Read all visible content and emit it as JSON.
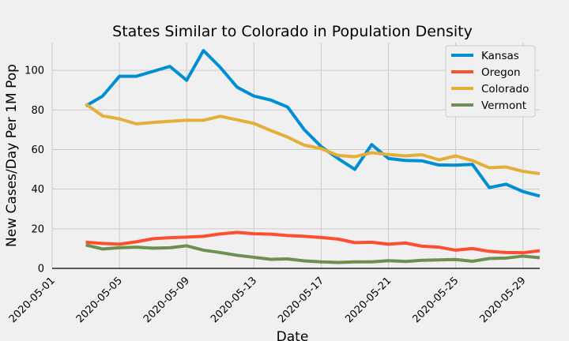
{
  "chart_data": {
    "type": "line",
    "title": "States Similar to Colorado in Population Density",
    "xlabel": "Date",
    "ylabel": "New Cases/Day Per 1M Pop",
    "x_tick_labels": [
      "2020-05-01",
      "2020-05-05",
      "2020-05-09",
      "2020-05-13",
      "2020-05-17",
      "2020-05-21",
      "2020-05-25",
      "2020-05-29"
    ],
    "y_tick_labels": [
      "0",
      "20",
      "40",
      "60",
      "80",
      "100"
    ],
    "xlim": [
      "2020-05-01",
      "2020-05-30"
    ],
    "ylim": [
      0,
      114
    ],
    "grid": true,
    "legend_position": "top-right",
    "x": [
      "2020-05-03",
      "2020-05-04",
      "2020-05-05",
      "2020-05-06",
      "2020-05-07",
      "2020-05-08",
      "2020-05-09",
      "2020-05-10",
      "2020-05-11",
      "2020-05-12",
      "2020-05-13",
      "2020-05-14",
      "2020-05-15",
      "2020-05-16",
      "2020-05-17",
      "2020-05-18",
      "2020-05-19",
      "2020-05-20",
      "2020-05-21",
      "2020-05-22",
      "2020-05-23",
      "2020-05-24",
      "2020-05-25",
      "2020-05-26",
      "2020-05-27",
      "2020-05-28",
      "2020-05-29",
      "2020-05-30"
    ],
    "series": [
      {
        "name": "Kansas",
        "color": "#008fd5",
        "values": [
          82,
          87,
          97,
          97,
          99.5,
          102,
          95,
          110,
          101.5,
          91.5,
          87,
          85,
          81.5,
          70,
          61.5,
          55.5,
          50,
          62.5,
          55.5,
          54.5,
          54.3,
          52.2,
          52.1,
          52.5,
          40.8,
          42.5,
          38.8,
          36.5
        ]
      },
      {
        "name": "Oregon",
        "color": "#fc4f30",
        "values": [
          13.2,
          12.6,
          12.2,
          13.4,
          15,
          15.5,
          15.8,
          16.2,
          17.4,
          18.2,
          17.5,
          17.3,
          16.6,
          16.2,
          15.6,
          14.8,
          13,
          13.2,
          12.2,
          12.8,
          11.2,
          10.7,
          9.2,
          10,
          8.6,
          8,
          7.9,
          8.9
        ]
      },
      {
        "name": "Colorado",
        "color": "#e5ae38",
        "values": [
          83,
          77,
          75.5,
          73,
          73.7,
          74.3,
          74.8,
          74.8,
          76.8,
          75,
          73.2,
          69.6,
          66.3,
          62.2,
          60.5,
          57,
          56.4,
          58.4,
          57.5,
          56.8,
          57.4,
          54.8,
          56.8,
          54.4,
          50.8,
          51.2,
          49,
          47.8
        ]
      },
      {
        "name": "Vermont",
        "color": "#6d904f",
        "values": [
          11.8,
          9.8,
          10.4,
          10.7,
          10.2,
          10.4,
          11.4,
          9.2,
          8,
          6.6,
          5.6,
          4.6,
          4.8,
          3.8,
          3.3,
          3,
          3.3,
          3.3,
          3.9,
          3.5,
          4.1,
          4.3,
          4.5,
          3.6,
          5,
          5.2,
          6.2,
          5.4
        ]
      }
    ]
  }
}
